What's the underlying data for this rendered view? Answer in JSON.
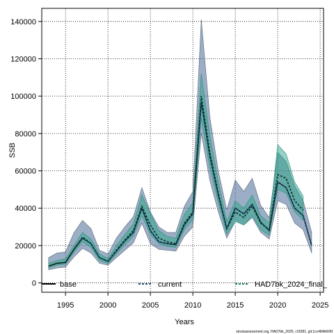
{
  "chart_data": {
    "type": "area",
    "xlabel": "Years",
    "ylabel": "SSB",
    "xlim": [
      1992.2,
      2025.4
    ],
    "ylim": [
      -5000,
      147000
    ],
    "grid": true,
    "x_ticks": [
      1995,
      2000,
      2005,
      2010,
      2015,
      2020,
      2025
    ],
    "y_ticks": [
      0,
      20000,
      40000,
      60000,
      80000,
      100000,
      120000,
      140000
    ],
    "legend_position": "bottom",
    "colors": {
      "base": "#000000",
      "current": "#1f4e79",
      "final": "#1b7f64",
      "band_current": "#4a6b95",
      "band_final": "#2aa588"
    },
    "x": [
      1993,
      1994,
      1995,
      1996,
      1997,
      1998,
      1999,
      2000,
      2001,
      2002,
      2003,
      2004,
      2005,
      2006,
      2007,
      2008,
      2009,
      2010,
      2011,
      2012,
      2013,
      2014,
      2015,
      2016,
      2017,
      2018,
      2019,
      2020,
      2021,
      2022,
      2023,
      2024
    ],
    "series": [
      {
        "name": "base",
        "values": [
          9000,
          10500,
          11000,
          18000,
          24000,
          21000,
          13500,
          11500,
          17000,
          22500,
          27000,
          40000,
          28000,
          22000,
          21000,
          20500,
          31000,
          37000,
          97000,
          68000,
          47000,
          29000,
          40000,
          37000,
          42000,
          32500,
          28000,
          54000,
          51000,
          40000,
          36000,
          20000
        ],
        "lower": [
          7000,
          8000,
          8500,
          14000,
          18500,
          16000,
          10500,
          9500,
          13500,
          17500,
          21500,
          32000,
          21000,
          18000,
          17500,
          17000,
          25000,
          30000,
          80000,
          55000,
          38000,
          24000,
          33000,
          31000,
          35000,
          27000,
          23500,
          44000,
          42000,
          32000,
          28500,
          16000
        ],
        "upper": [
          13500,
          16000,
          16500,
          27000,
          33500,
          29000,
          17500,
          15500,
          24000,
          30000,
          35500,
          51000,
          38000,
          30000,
          27000,
          27000,
          41000,
          49000,
          141000,
          89000,
          60000,
          39000,
          55000,
          49000,
          56000,
          41500,
          35000,
          70000,
          65000,
          52000,
          44000,
          27000
        ]
      },
      {
        "name": "current",
        "values": [
          9000,
          10500,
          11000,
          18000,
          24000,
          21000,
          13500,
          11500,
          17000,
          22500,
          27000,
          40000,
          28000,
          22000,
          21000,
          20500,
          31000,
          37000,
          97000,
          68000,
          47000,
          29000,
          40000,
          37000,
          42000,
          32500,
          28000,
          54000,
          51000,
          40000,
          36000,
          20000
        ]
      },
      {
        "name": "HAD7bk_2024_final_",
        "values": [
          9000,
          10500,
          11000,
          18000,
          24500,
          21000,
          13500,
          11500,
          17500,
          23000,
          28000,
          41000,
          31000,
          24000,
          22000,
          21000,
          32000,
          38000,
          100000,
          70000,
          48000,
          29000,
          38000,
          35000,
          41000,
          32000,
          28500,
          58000,
          56000,
          44000,
          39000,
          null
        ],
        "lower": [
          8000,
          9500,
          10000,
          16500,
          22000,
          19000,
          12000,
          10500,
          15500,
          20500,
          25000,
          36000,
          26000,
          21000,
          19500,
          19000,
          28500,
          34000,
          88000,
          62000,
          43000,
          26000,
          33000,
          31000,
          36000,
          28500,
          25500,
          50000,
          48000,
          38000,
          33500,
          null
        ],
        "upper": [
          10500,
          12000,
          13000,
          20000,
          27000,
          23500,
          15500,
          13000,
          20000,
          26000,
          31500,
          47000,
          37000,
          28000,
          25000,
          24000,
          36500,
          43000,
          112000,
          79000,
          54000,
          33000,
          44000,
          40000,
          47000,
          36000,
          32000,
          74000,
          69000,
          54000,
          46500,
          null
        ]
      }
    ],
    "footer": "stockassessment.org, HAD7bk_2025, r19281, git:1cc484b606f"
  }
}
